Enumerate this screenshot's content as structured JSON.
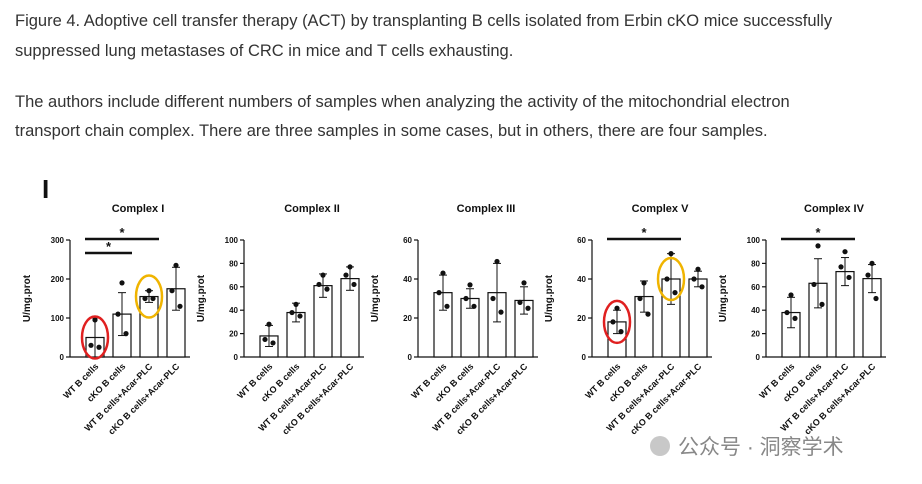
{
  "caption": [
    "Figure 4. Adoptive cell transfer therapy (ACT) by transplanting B cells isolated from Erbin cKO mice successfully",
    "suppressed lung metastases of CRC in mice and T cells exhausting."
  ],
  "note": [
    "The authors include different numbers of samples when analyzing the activity of the mitochondrial electron",
    "transport chain complex. There are three samples in some cases, but in others, there are four samples."
  ],
  "panel_label": "I",
  "watermark": "公众号 · 洞察学术",
  "chart_data": [
    {
      "type": "bar",
      "title": "Complex I",
      "ylabel": "U/mg.prot",
      "categories": [
        "WT B cells",
        "cKO B cells",
        "WT B cells+Acar-PLC",
        "cKO B cells+Acar-PLC"
      ],
      "values": [
        50,
        110,
        155,
        175
      ],
      "errors": [
        50,
        55,
        15,
        55
      ],
      "points": [
        [
          95,
          30,
          25
        ],
        [
          190,
          110,
          60
        ],
        [
          170,
          150,
          150
        ],
        [
          235,
          170,
          130
        ]
      ],
      "color": "#ffffff",
      "ylim": [
        0,
        300
      ],
      "yticks": [
        0,
        100,
        200,
        300
      ],
      "comparisons": [
        {
          "between": [
            0,
            2
          ],
          "label": "*"
        },
        {
          "between": [
            0,
            1
          ],
          "label": "*"
        }
      ]
    },
    {
      "type": "bar",
      "title": "Complex II",
      "ylabel": "U/mg.prot",
      "categories": [
        "WT B cells",
        "cKO B cells",
        "WT B cells+Acar-PLC",
        "cKO B cells+Acar-PLC"
      ],
      "values": [
        18,
        38,
        61,
        67
      ],
      "errors": [
        9,
        8,
        10,
        10
      ],
      "points": [
        [
          28,
          15,
          12
        ],
        [
          45,
          38,
          35
        ],
        [
          70,
          62,
          58
        ],
        [
          77,
          70,
          62
        ]
      ],
      "color": "#ffffff",
      "ylim": [
        0,
        100
      ],
      "yticks": [
        0,
        20,
        40,
        60,
        80,
        100
      ],
      "comparisons": []
    },
    {
      "type": "bar",
      "title": "Complex III",
      "ylabel": "U/mg.prot",
      "categories": [
        "WT B cells",
        "cKO B cells",
        "WT B cells+Acar-PLC",
        "cKO B cells+Acar-PLC"
      ],
      "values": [
        33,
        30,
        33,
        29
      ],
      "errors": [
        9,
        5,
        15,
        7
      ],
      "points": [
        [
          43,
          33,
          26
        ],
        [
          37,
          30,
          26
        ],
        [
          49,
          30,
          23
        ],
        [
          38,
          28,
          25
        ]
      ],
      "color": "#ffffff",
      "ylim": [
        0,
        60
      ],
      "yticks": [
        0,
        20,
        40,
        60
      ],
      "comparisons": []
    },
    {
      "type": "bar",
      "title": "Complex V",
      "ylabel": "U/mg.prot",
      "categories": [
        "WT B cells",
        "cKO B cells",
        "WT B cells+Acar-PLC",
        "cKO B cells+Acar-PLC"
      ],
      "values": [
        18,
        31,
        40,
        40
      ],
      "errors": [
        6,
        8,
        13,
        4
      ],
      "points": [
        [
          25,
          18,
          13
        ],
        [
          38,
          30,
          22
        ],
        [
          53,
          40,
          33
        ],
        [
          45,
          40,
          36
        ]
      ],
      "color": "#ffffff",
      "ylim": [
        0,
        60
      ],
      "yticks": [
        0,
        20,
        40,
        60
      ],
      "comparisons": [
        {
          "between": [
            0,
            2
          ],
          "label": "*"
        }
      ]
    },
    {
      "type": "bar",
      "title": "Complex IV",
      "ylabel": "U/mg.prot",
      "categories": [
        "WT B cells",
        "cKO B cells",
        "WT B cells+Acar-PLC",
        "cKO B cells+Acar-PLC"
      ],
      "values": [
        38,
        63,
        73,
        67
      ],
      "errors": [
        13,
        21,
        12,
        12
      ],
      "points": [
        [
          53,
          38,
          33
        ],
        [
          95,
          62,
          45
        ],
        [
          90,
          77,
          68
        ],
        [
          80,
          70,
          50
        ]
      ],
      "color": "#ffffff",
      "ylim": [
        0,
        100
      ],
      "yticks": [
        0,
        20,
        40,
        60,
        80,
        100
      ],
      "comparisons": [
        {
          "between": [
            0,
            2
          ],
          "label": "*"
        }
      ]
    }
  ]
}
